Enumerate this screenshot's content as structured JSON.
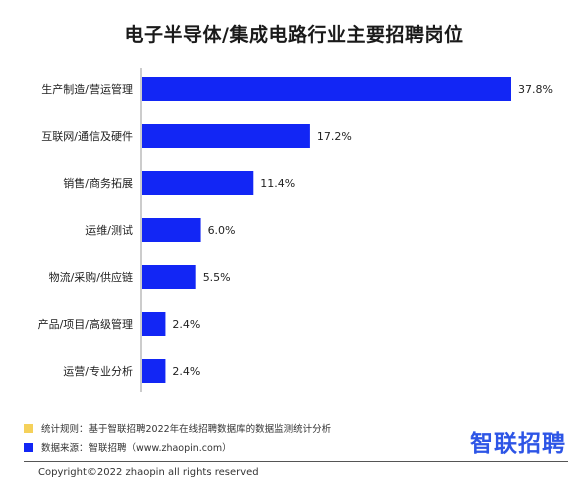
{
  "chart_data": {
    "type": "bar",
    "orientation": "horizontal",
    "title": "电子半导体/集成电路行业主要招聘岗位",
    "categories": [
      "生产制造/营运管理",
      "互联网/通信及硬件",
      "销售/商务拓展",
      "运维/测试",
      "物流/采购/供应链",
      "产品/项目/高级管理",
      "运营/专业分析"
    ],
    "values": [
      37.8,
      17.2,
      11.4,
      6.0,
      5.5,
      2.4,
      2.4
    ],
    "value_labels": [
      "37.8%",
      "17.2%",
      "11.4%",
      "6.0%",
      "5.5%",
      "2.4%",
      "2.4%"
    ],
    "bar_color": "#1226f5",
    "xlim": [
      0,
      40
    ],
    "grid": false,
    "legend": "none"
  },
  "notes": {
    "rule_label": "统计规则：基于智联招聘2022年在线招聘数据库的数据监测统计分析",
    "rule_color": "#f5d15a",
    "source_label": "数据来源：智联招聘（www.zhaopin.com）",
    "source_color": "#1226f5"
  },
  "logo": {
    "text": "智联招聘",
    "color": "#2d55e6"
  },
  "footer": {
    "copyright": "Copyright©2022 zhaopin all rights reserved"
  }
}
